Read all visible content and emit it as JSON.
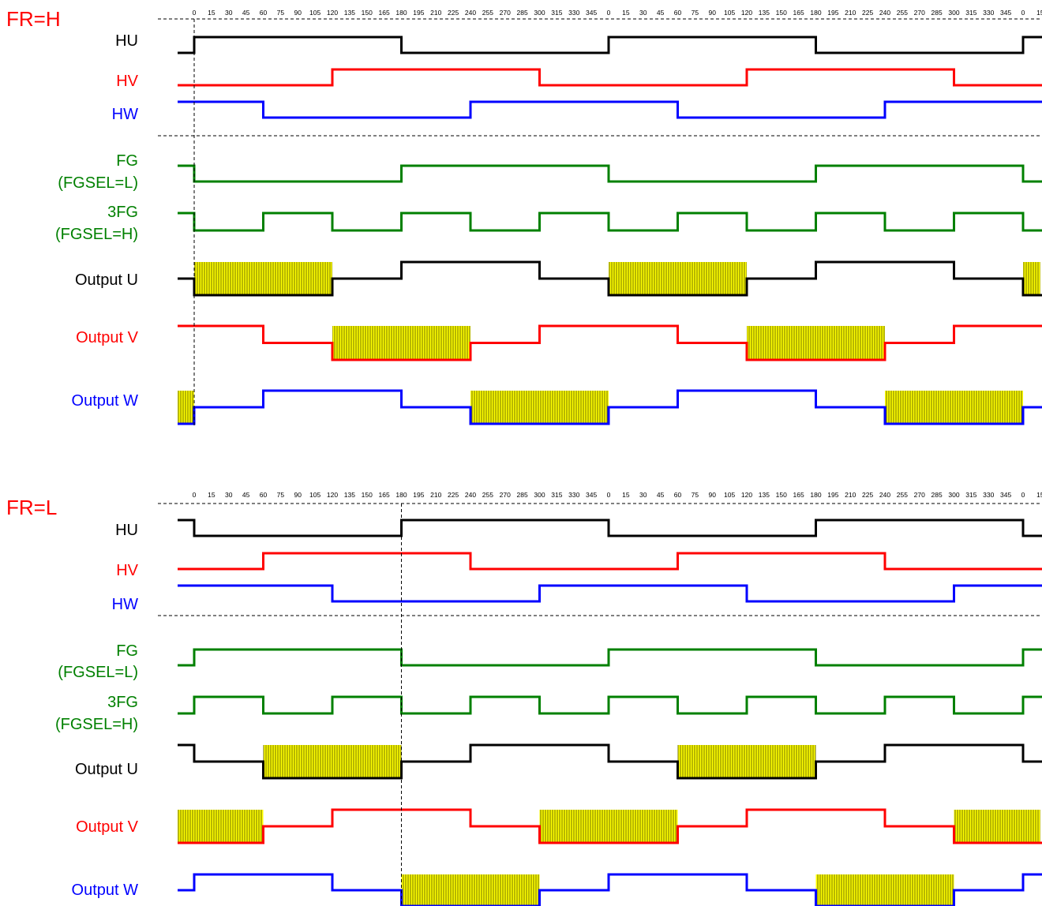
{
  "colors": {
    "black": "#000000",
    "red": "#ff0000",
    "blue": "#0000ff",
    "green": "#008000",
    "pwm_fill": "#ffff00",
    "pwm_hatch": "#606000",
    "fr_label": "#ff0000"
  },
  "degree_ticks": [
    "0",
    "15",
    "30",
    "45",
    "60",
    "75",
    "90",
    "105",
    "120",
    "135",
    "150",
    "165",
    "180",
    "195",
    "210",
    "225",
    "240",
    "255",
    "270",
    "285",
    "300",
    "315",
    "330",
    "345",
    "0",
    "15",
    "30",
    "45",
    "60",
    "75",
    "90",
    "105",
    "120",
    "135",
    "150",
    "165",
    "180",
    "195",
    "210",
    "225",
    "240",
    "255",
    "270",
    "285",
    "300",
    "315",
    "330",
    "345",
    "0",
    "15"
  ],
  "panels": [
    {
      "id": "fr-h",
      "title": "FR=H",
      "marker_deg": 0,
      "signals": [
        {
          "key": "hu",
          "label": [
            "HU"
          ],
          "color": "black",
          "init": 0,
          "edges": [
            [
              0,
              1
            ],
            [
              180,
              0
            ],
            [
              360,
              1
            ],
            [
              540,
              0
            ],
            [
              720,
              1
            ]
          ],
          "pwm": []
        },
        {
          "key": "hv",
          "label": [
            "HV"
          ],
          "color": "red",
          "init": 0,
          "edges": [
            [
              120,
              1
            ],
            [
              300,
              0
            ],
            [
              480,
              1
            ],
            [
              660,
              0
            ]
          ],
          "pwm": []
        },
        {
          "key": "hw",
          "label": [
            "HW"
          ],
          "color": "blue",
          "init": 1,
          "edges": [
            [
              60,
              0
            ],
            [
              240,
              1
            ],
            [
              420,
              0
            ],
            [
              600,
              1
            ]
          ],
          "pwm": []
        },
        {
          "key": "fg",
          "label": [
            "FG",
            "(FGSEL=L)"
          ],
          "color": "green",
          "init": 1,
          "edges": [
            [
              0,
              0
            ],
            [
              180,
              1
            ],
            [
              360,
              0
            ],
            [
              540,
              1
            ],
            [
              720,
              0
            ]
          ],
          "pwm": []
        },
        {
          "key": "fg3",
          "label": [
            "3FG",
            "(FGSEL=H)"
          ],
          "color": "green",
          "init": 1,
          "edges": [
            [
              0,
              0
            ],
            [
              60,
              1
            ],
            [
              120,
              0
            ],
            [
              180,
              1
            ],
            [
              240,
              0
            ],
            [
              300,
              1
            ],
            [
              360,
              0
            ],
            [
              420,
              1
            ],
            [
              480,
              0
            ],
            [
              540,
              1
            ],
            [
              600,
              0
            ],
            [
              660,
              1
            ],
            [
              720,
              0
            ]
          ],
          "pwm": []
        },
        {
          "key": "out-u",
          "label": [
            "Output U"
          ],
          "color": "black",
          "init": 0.5,
          "edges": [
            [
              0,
              0
            ],
            [
              120,
              0.5
            ],
            [
              180,
              1
            ],
            [
              300,
              0.5
            ],
            [
              360,
              0
            ],
            [
              480,
              0.5
            ],
            [
              540,
              1
            ],
            [
              660,
              0.5
            ],
            [
              720,
              0
            ]
          ],
          "pwm": [
            [
              0,
              120
            ],
            [
              360,
              480
            ],
            [
              720,
              735
            ]
          ]
        },
        {
          "key": "out-v",
          "label": [
            "Output V"
          ],
          "color": "red",
          "init": 1,
          "edges": [
            [
              60,
              0.5
            ],
            [
              120,
              0
            ],
            [
              240,
              0.5
            ],
            [
              300,
              1
            ],
            [
              420,
              0.5
            ],
            [
              480,
              0
            ],
            [
              600,
              0.5
            ],
            [
              660,
              1
            ]
          ],
          "pwm": [
            [
              120,
              240
            ],
            [
              480,
              600
            ]
          ]
        },
        {
          "key": "out-w",
          "label": [
            "Output W"
          ],
          "color": "blue",
          "init": 0,
          "edges": [
            [
              0,
              0.5
            ],
            [
              60,
              1
            ],
            [
              180,
              0.5
            ],
            [
              240,
              0
            ],
            [
              360,
              0.5
            ],
            [
              420,
              1
            ],
            [
              540,
              0.5
            ],
            [
              600,
              0
            ],
            [
              720,
              0.5
            ]
          ],
          "pwm": [
            [
              -15,
              0
            ],
            [
              240,
              360
            ],
            [
              600,
              720
            ]
          ]
        }
      ]
    },
    {
      "id": "fr-l",
      "title": "FR=L",
      "marker_deg": 180,
      "signals": [
        {
          "key": "hu",
          "label": [
            "HU"
          ],
          "color": "black",
          "init": 1,
          "edges": [
            [
              0,
              0
            ],
            [
              180,
              1
            ],
            [
              360,
              0
            ],
            [
              540,
              1
            ],
            [
              720,
              0
            ]
          ],
          "pwm": []
        },
        {
          "key": "hv",
          "label": [
            "HV"
          ],
          "color": "red",
          "init": 0,
          "edges": [
            [
              60,
              1
            ],
            [
              240,
              0
            ],
            [
              420,
              1
            ],
            [
              600,
              0
            ]
          ],
          "pwm": []
        },
        {
          "key": "hw",
          "label": [
            "HW"
          ],
          "color": "blue",
          "init": 1,
          "edges": [
            [
              120,
              0
            ],
            [
              300,
              1
            ],
            [
              480,
              0
            ],
            [
              660,
              1
            ]
          ],
          "pwm": []
        },
        {
          "key": "fg",
          "label": [
            "FG",
            "(FGSEL=L)"
          ],
          "color": "green",
          "init": 0,
          "edges": [
            [
              0,
              1
            ],
            [
              180,
              0
            ],
            [
              360,
              1
            ],
            [
              540,
              0
            ],
            [
              720,
              1
            ]
          ],
          "pwm": []
        },
        {
          "key": "fg3",
          "label": [
            "3FG",
            "(FGSEL=H)"
          ],
          "color": "green",
          "init": 0,
          "edges": [
            [
              0,
              1
            ],
            [
              60,
              0
            ],
            [
              120,
              1
            ],
            [
              180,
              0
            ],
            [
              240,
              1
            ],
            [
              300,
              0
            ],
            [
              360,
              1
            ],
            [
              420,
              0
            ],
            [
              480,
              1
            ],
            [
              540,
              0
            ],
            [
              600,
              1
            ],
            [
              660,
              0
            ],
            [
              720,
              1
            ]
          ],
          "pwm": []
        },
        {
          "key": "out-u",
          "label": [
            "Output U"
          ],
          "color": "black",
          "init": 1,
          "edges": [
            [
              0,
              0.5
            ],
            [
              60,
              0
            ],
            [
              180,
              0.5
            ],
            [
              240,
              1
            ],
            [
              360,
              0.5
            ],
            [
              420,
              0
            ],
            [
              540,
              0.5
            ],
            [
              600,
              1
            ],
            [
              720,
              0.5
            ]
          ],
          "pwm": [
            [
              60,
              180
            ],
            [
              420,
              540
            ]
          ]
        },
        {
          "key": "out-v",
          "label": [
            "Output V"
          ],
          "color": "red",
          "init": 0,
          "edges": [
            [
              60,
              0.5
            ],
            [
              120,
              1
            ],
            [
              240,
              0.5
            ],
            [
              300,
              0
            ],
            [
              420,
              0.5
            ],
            [
              480,
              1
            ],
            [
              600,
              0.5
            ],
            [
              660,
              0
            ]
          ],
          "pwm": [
            [
              -15,
              60
            ],
            [
              300,
              420
            ],
            [
              660,
              735
            ]
          ]
        },
        {
          "key": "out-w",
          "label": [
            "Output W"
          ],
          "color": "blue",
          "init": 0.5,
          "edges": [
            [
              0,
              1
            ],
            [
              120,
              0.5
            ],
            [
              180,
              0
            ],
            [
              300,
              0.5
            ],
            [
              360,
              1
            ],
            [
              480,
              0.5
            ],
            [
              540,
              0
            ],
            [
              660,
              0.5
            ],
            [
              720,
              1
            ]
          ],
          "pwm": [
            [
              180,
              300
            ],
            [
              540,
              660
            ]
          ]
        }
      ]
    }
  ]
}
